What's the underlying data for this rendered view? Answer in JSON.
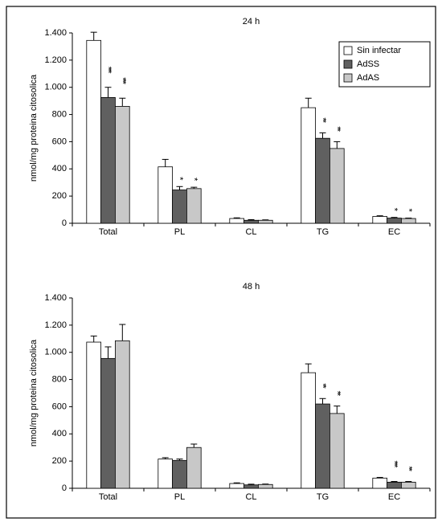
{
  "chart_data": [
    {
      "type": "bar",
      "title": "24 h",
      "y_label": "nmol/mg proteina citosolica",
      "categories": [
        "Total",
        "PL",
        "CL",
        "TG",
        "EC"
      ],
      "legend": "upper right",
      "series": [
        {
          "name": "Sin infectar",
          "color": "#ffffff",
          "values": [
            1345,
            415,
            35,
            850,
            50
          ],
          "errors": [
            60,
            55,
            5,
            70,
            5
          ],
          "annotations": [
            null,
            null,
            null,
            null,
            null
          ]
        },
        {
          "name": "AdSS",
          "color": "#606060",
          "values": [
            925,
            245,
            22,
            625,
            38
          ],
          "errors": [
            75,
            25,
            5,
            40,
            5
          ],
          "annotations": [
            "***",
            "*",
            null,
            "**",
            "*"
          ]
        },
        {
          "name": "AdAS",
          "color": "#c8c8c8",
          "values": [
            860,
            255,
            22,
            550,
            35
          ],
          "errors": [
            60,
            10,
            3,
            50,
            3
          ],
          "annotations": [
            "***",
            "*",
            null,
            "**",
            "*"
          ]
        }
      ],
      "ylim": [
        0,
        1400
      ],
      "yticks": [
        0,
        200,
        400,
        600,
        800,
        {
          "value": 1000,
          "label": "1.000"
        },
        {
          "value": 1200,
          "label": "1.200"
        },
        {
          "value": 1400,
          "label": "1.400"
        }
      ]
    },
    {
      "type": "bar",
      "title": "48 h",
      "y_label": "nmol/mg proteina citosolica",
      "categories": [
        "Total",
        "PL",
        "CL",
        "TG",
        "EC"
      ],
      "series": [
        {
          "color": "#ffffff",
          "values": [
            1075,
            215,
            35,
            850,
            75
          ],
          "errors": [
            45,
            10,
            5,
            65,
            5
          ],
          "annotations": [
            null,
            null,
            null,
            null,
            null
          ]
        },
        {
          "color": "#606060",
          "values": [
            955,
            205,
            25,
            620,
            45
          ],
          "errors": [
            85,
            10,
            5,
            40,
            5
          ],
          "annotations": [
            null,
            null,
            null,
            "**",
            "***"
          ]
        },
        {
          "color": "#c8c8c8",
          "values": [
            1085,
            300,
            28,
            550,
            45
          ],
          "errors": [
            120,
            25,
            3,
            55,
            5
          ],
          "annotations": [
            null,
            null,
            null,
            "**",
            "**"
          ]
        }
      ],
      "ylim": [
        0,
        1400
      ],
      "yticks": [
        0,
        200,
        400,
        600,
        800,
        {
          "value": 1000,
          "label": "1.000"
        },
        {
          "value": 1200,
          "label": "1.200"
        },
        {
          "value": 1400,
          "label": "1.400"
        }
      ]
    }
  ]
}
